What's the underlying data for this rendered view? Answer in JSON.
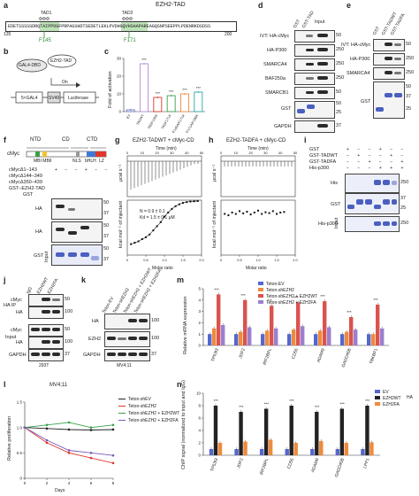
{
  "panels": {
    "a": "a",
    "b": "b",
    "c": "c",
    "d": "d",
    "e": "e",
    "f": "f",
    "g": "g",
    "h": "h",
    "i": "i",
    "j": "j",
    "k": "k",
    "l": "l",
    "m": "m",
    "n": "n"
  },
  "panel_a": {
    "title": "EZH2-TAD",
    "tad1": "TAD1",
    "tad2": "TAD2",
    "sequence": "EDETSSSSSDRQTAIPPDGFPRPAGSHDTSEDETLEKLPVDHGQVHSAAPAREAGQSNPSEEPPLPDENRKDSDSS",
    "start": "135",
    "end": "200",
    "mut1": "F145",
    "mut2": "F171",
    "phi1": "ΦΦΦ",
    "phi2": "ΦΦΦ"
  },
  "panel_b": {
    "gal4": "GAL4-DBD",
    "ezh2tad": "EZH2-TAD",
    "on": "On",
    "gal4x5": "5×GAL4",
    "sv40": "SV40",
    "luc": "Luciferase"
  },
  "panel_c": {
    "ylabel": "Fold of activation",
    "stars": "***",
    "chart_data": {
      "type": "bar",
      "categories": [
        "EV",
        "TADWT",
        "TADF145A",
        "TADF171A",
        "TADF145A/F171A",
        "TADF145A/F171A/F196A"
      ],
      "values": [
        1,
        27,
        8,
        9,
        10,
        11
      ],
      "ylim": [
        0,
        30
      ],
      "yticks": [
        "0",
        "10",
        "20",
        "30"
      ]
    }
  },
  "panel_d": {
    "lanes": [
      "GST",
      "GST-TAD",
      "Input"
    ],
    "rows": [
      "IVT: HA-cMyc",
      "HA-P300",
      "SMARCA4",
      "BAF250a",
      "SMARCB1",
      "GST",
      "GAPDH"
    ],
    "mw": [
      "50",
      "250",
      "250",
      "250",
      "50",
      "50",
      "25",
      "37"
    ]
  },
  "panel_e": {
    "lanes": [
      "GST",
      "GST-TADWT",
      "GST-TADFA"
    ],
    "rows": [
      "IVT: HA-cMyc",
      "HA-P300",
      "SMARCA4",
      "GST"
    ],
    "mw": [
      "50",
      "250",
      "250",
      "50",
      "37",
      "25"
    ]
  },
  "panel_f": {
    "domains": [
      "NTD",
      "CD",
      "CTD"
    ],
    "cmyc": "cMyc",
    "features": [
      "MBI MBII",
      "NLS",
      "bHLH",
      "LZ"
    ],
    "constructs": [
      "cMycΔ1–143",
      "cMycΔ144–349",
      "cMycΔ350–439",
      "GST–EZH2-TAD",
      "GST"
    ],
    "blots": [
      "HA",
      "HA",
      "GST"
    ],
    "input": "Input",
    "mw": [
      "50",
      "37",
      "50",
      "37",
      "50",
      "37"
    ]
  },
  "panel_g": {
    "title": "EZH2-TADWT + cMyc-CD",
    "xtop": "Time (min)",
    "ylabel_top": "μcal s⁻¹",
    "ylabel_bot": "kcal mol⁻¹ of injectant",
    "xlabel": "Molar ratio",
    "n_text": "N = 0.9 ± 0.1",
    "kd_text": "Kd = 1.5 ± 0.1 μM",
    "chart_data": {
      "type": "scatter",
      "x": [
        0.1,
        0.2,
        0.3,
        0.4,
        0.5,
        0.6,
        0.7,
        0.8,
        0.9,
        1.0,
        1.1,
        1.2,
        1.3,
        1.4,
        1.5,
        1.6,
        1.7,
        1.8,
        1.9
      ],
      "y": [
        -1.6,
        -1.55,
        -1.5,
        -1.42,
        -1.35,
        -1.25,
        -1.1,
        -0.95,
        -0.8,
        -0.6,
        -0.45,
        -0.32,
        -0.22,
        -0.15,
        -0.1,
        -0.07,
        -0.05,
        -0.04,
        -0.03
      ],
      "xlim": [
        0,
        2
      ],
      "ylim": [
        -2,
        0
      ],
      "xticks_top": [
        "0",
        "10",
        "20",
        "30",
        "40",
        "50"
      ],
      "xticks": [
        "0",
        "0.5",
        "1.0",
        "1.5",
        "2.0"
      ]
    }
  },
  "panel_h": {
    "title": "EZH2-TADFA + cMyc-CD",
    "xtop": "Time (min)",
    "ylabel_top": "μcal s⁻¹",
    "ylabel_bot": "kcal mol⁻¹ of injectant",
    "xlabel": "Molar ratio",
    "chart_data": {
      "type": "scatter",
      "x": [
        0.1,
        0.2,
        0.3,
        0.4,
        0.5,
        0.6,
        0.7,
        0.8,
        0.9,
        1.0,
        1.1,
        1.2,
        1.3,
        1.4,
        1.5,
        1.6,
        1.7
      ],
      "y": [
        -0.5,
        -0.55,
        -0.45,
        -0.5,
        -0.4,
        -0.48,
        -0.42,
        -0.52,
        -0.45,
        -0.38,
        -0.5,
        -0.44,
        -0.47,
        -0.4,
        -0.5,
        -0.45,
        -0.43
      ],
      "xlim": [
        0,
        2
      ],
      "ylim": [
        -2,
        0
      ],
      "xticks_top": [
        "0",
        "10",
        "20",
        "30",
        "40",
        "50"
      ],
      "xticks": [
        "0",
        "0.5",
        "1.0",
        "1.5",
        "2.0"
      ]
    }
  },
  "panel_i": {
    "conds": [
      "GST",
      "GST-TADWT",
      "GST-TADFA",
      "His-p300"
    ],
    "plusminus": [
      [
        "+",
        "−",
        "−",
        "+",
        "−",
        "−"
      ],
      [
        "−",
        "+",
        "−",
        "−",
        "+",
        "−"
      ],
      [
        "−",
        "−",
        "+",
        "−",
        "−",
        "+"
      ],
      [
        "−",
        "−",
        "−",
        "+",
        "+",
        "+"
      ]
    ],
    "rows": [
      "His",
      "GST",
      "His-p300"
    ],
    "input": "Input",
    "mw": [
      "250",
      "37",
      "25",
      "250"
    ]
  },
  "panel_j": {
    "lanes": [
      "IgG",
      "EZH2WT",
      "EZH2FA"
    ],
    "rows": [
      "cMyc",
      "HA",
      "cMyc",
      "HA",
      "GAPDH"
    ],
    "groups": [
      "HA IP",
      "Input"
    ],
    "cell": "293T",
    "mw": [
      "50",
      "100",
      "50",
      "100",
      "37"
    ]
  },
  "panel_k": {
    "lanes": [
      "Teton-EV",
      "Teton-shEZH2",
      "Teton-shEZH2 + EZH2WT",
      "Teton-shEZH2 + EZH2FA"
    ],
    "rows": [
      "HA",
      "EZH2",
      "GAPDH"
    ],
    "cell": "MV4;11",
    "mw": [
      "100",
      "100",
      "37"
    ]
  },
  "panel_l": {
    "title": "MV4;11",
    "ylabel": "Relative proliferation",
    "xlabel": "Days",
    "legend": [
      "Teton-shEV",
      "Teton-shEZH2",
      "Teton-shEZH2 + EZH2WT",
      "Teton-shEZH2 + EZH2FA"
    ],
    "colors": [
      "#222222",
      "#e0362c",
      "#3aa14a",
      "#7b5bb6"
    ],
    "chart_data": {
      "type": "line",
      "x": [
        0,
        2,
        4,
        6,
        8
      ],
      "series": [
        {
          "name": "Teton-shEV",
          "values": [
            1.0,
            0.98,
            0.96,
            0.95,
            0.96
          ]
        },
        {
          "name": "Teton-shEZH2",
          "values": [
            1.0,
            0.7,
            0.5,
            0.4,
            0.3
          ]
        },
        {
          "name": "Teton-shEZH2 + EZH2WT",
          "values": [
            1.0,
            1.05,
            1.1,
            1.0,
            1.05
          ]
        },
        {
          "name": "Teton-shEZH2 + EZH2FA",
          "values": [
            1.0,
            0.75,
            0.55,
            0.5,
            0.45
          ]
        }
      ],
      "xlim": [
        0,
        8
      ],
      "ylim": [
        0,
        1.5
      ],
      "yticks": [
        "0",
        "0.5",
        "1.0",
        "1.5"
      ],
      "xticks": [
        "0",
        "2",
        "4",
        "6",
        "8"
      ]
    }
  },
  "panel_m": {
    "ylabel": "Relative mRNA expression",
    "legend": [
      "Teton-EV",
      "Teton-shEZH2",
      "Teton-shEZH2 + EZH2WT",
      "Teton-shEZH2 + EZH2FA"
    ],
    "colors": [
      "#5566cc",
      "#ef8a3c",
      "#d9534f",
      "#9b7fd0"
    ],
    "stars": "***",
    "star1": "*",
    "chart_data": {
      "type": "bar",
      "categories": [
        "TP53I3",
        "JDP2",
        "IRF2BPL",
        "CD55",
        "ADAM9",
        "GADD45B",
        "TBKBP1"
      ],
      "series": [
        {
          "name": "Teton-EV",
          "values": [
            1.0,
            1.0,
            1.0,
            1.0,
            1.0,
            1.0,
            1.0
          ]
        },
        {
          "name": "Teton-shEZH2",
          "values": [
            1.5,
            1.2,
            1.3,
            1.4,
            1.3,
            1.2,
            1.0
          ]
        },
        {
          "name": "Teton-shEZH2 + EZH2WT",
          "values": [
            4.5,
            4.0,
            3.5,
            3.8,
            3.9,
            2.5,
            3.6
          ]
        },
        {
          "name": "Teton-shEZH2 + EZH2FA",
          "values": [
            1.8,
            1.6,
            1.5,
            1.7,
            1.6,
            1.4,
            1.5
          ]
        }
      ],
      "ylim": [
        0,
        5
      ],
      "yticks": [
        "0",
        "1",
        "2",
        "3",
        "4",
        "5"
      ]
    }
  },
  "panel_n": {
    "ylabel": "ChIP signal (normalized to input and IgG)",
    "legend": [
      "EV",
      "EZH2WT",
      "EZH2FA"
    ],
    "legend_group": "HA",
    "colors": [
      "#5566cc",
      "#222222",
      "#ef8a3c"
    ],
    "stars": "***",
    "chart_data": {
      "type": "bar",
      "categories": [
        "TP53I3",
        "JDP2",
        "IRF2BPL",
        "CD55",
        "ADAM9",
        "GADD45B",
        "LPP1"
      ],
      "series": [
        {
          "name": "EV",
          "values": [
            1,
            1,
            1,
            1,
            1,
            1,
            1
          ]
        },
        {
          "name": "EZH2WT",
          "values": [
            8,
            7,
            7.5,
            8,
            7,
            7.5,
            8
          ]
        },
        {
          "name": "EZH2FA",
          "values": [
            2,
            2.2,
            2.5,
            2,
            2.3,
            2,
            2.1
          ]
        }
      ],
      "ylim": [
        0,
        10
      ],
      "yticks": [
        "0",
        "2",
        "4",
        "6",
        "8",
        "10"
      ]
    }
  }
}
